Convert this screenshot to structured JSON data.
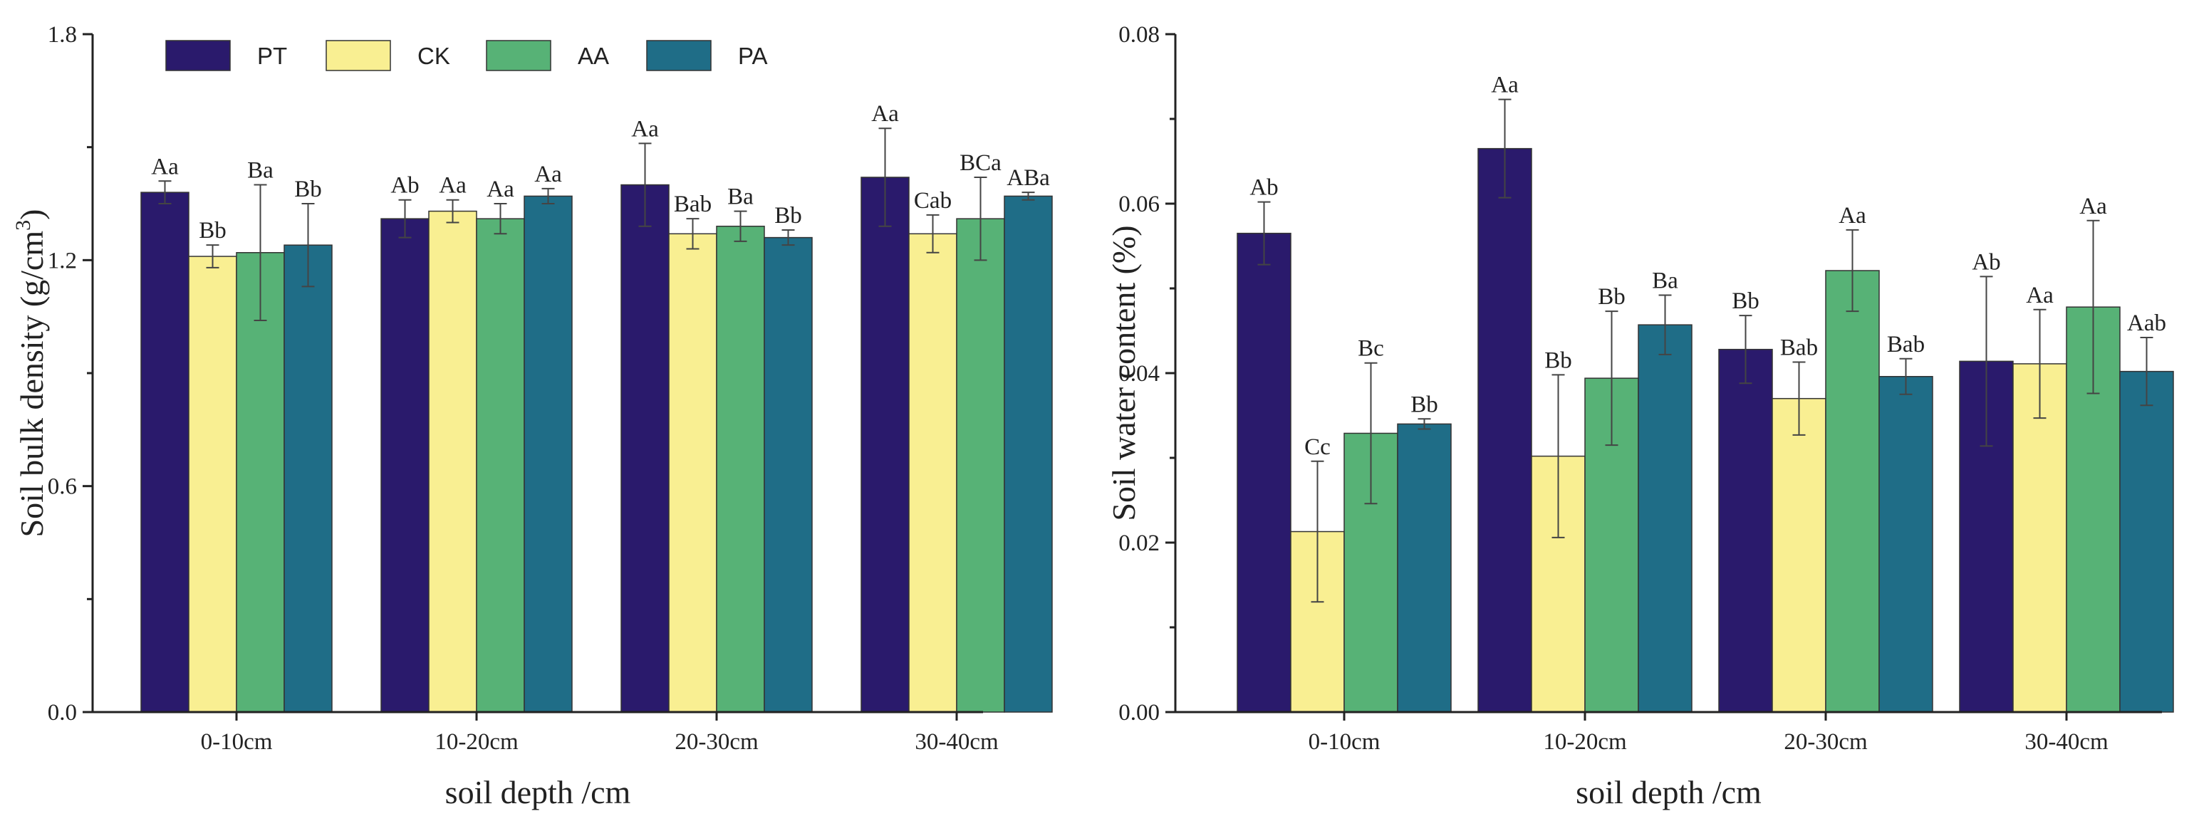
{
  "colors": {
    "PT": "#2a1a6c",
    "CK": "#f9ef92",
    "AA": "#57b276",
    "PA": "#1f6d87"
  },
  "legend": [
    "PT",
    "CK",
    "AA",
    "PA"
  ],
  "chart_data": [
    {
      "type": "bar",
      "title": "",
      "xlabel": "soil depth /cm",
      "ylabel_main": "Soil bulk density (g/cm",
      "ylabel_sup": "3",
      "ylabel_end": ")",
      "ylim": [
        0,
        1.8
      ],
      "yticks": [
        "0.0",
        "0.6",
        "1.2",
        "1.8"
      ],
      "ytick_values": [
        0,
        0.6,
        1.2,
        1.8
      ],
      "categories": [
        "0-10cm",
        "10-20cm",
        "20-30cm",
        "30-40cm"
      ],
      "series": [
        {
          "name": "PT",
          "values": [
            1.38,
            1.31,
            1.4,
            1.42
          ],
          "errors": [
            0.03,
            0.05,
            0.11,
            0.13
          ],
          "labels": [
            "Aa",
            "Ab",
            "Aa",
            "Aa"
          ]
        },
        {
          "name": "CK",
          "values": [
            1.21,
            1.33,
            1.27,
            1.27
          ],
          "errors": [
            0.03,
            0.03,
            0.04,
            0.05
          ],
          "labels": [
            "Bb",
            "Aa",
            "Bab",
            "Cab"
          ]
        },
        {
          "name": "AA",
          "values": [
            1.22,
            1.31,
            1.29,
            1.31
          ],
          "errors": [
            0.18,
            0.04,
            0.04,
            0.11
          ],
          "labels": [
            "Ba",
            "Aa",
            "Ba",
            "BCa"
          ]
        },
        {
          "name": "PA",
          "values": [
            1.24,
            1.37,
            1.26,
            1.37
          ],
          "errors": [
            0.11,
            0.02,
            0.02,
            0.01
          ],
          "labels": [
            "Bb",
            "Aa",
            "Bb",
            "ABa"
          ]
        }
      ]
    },
    {
      "type": "bar",
      "title": "",
      "xlabel": "soil depth /cm",
      "ylabel_main": "Soil water content (%)",
      "ylabel_sup": "",
      "ylabel_end": "",
      "ylim": [
        0,
        0.08
      ],
      "yticks": [
        "0.00",
        "0.02",
        "0.04",
        "0.06",
        "0.08"
      ],
      "ytick_values": [
        0,
        0.02,
        0.04,
        0.06,
        0.08
      ],
      "categories": [
        "0-10cm",
        "10-20cm",
        "20-30cm",
        "30-40cm"
      ],
      "series": [
        {
          "name": "PT",
          "values": [
            0.0565,
            0.0665,
            0.0428,
            0.0414
          ],
          "errors": [
            0.0037,
            0.0058,
            0.004,
            0.01
          ],
          "labels": [
            "Ab",
            "Aa",
            "Bb",
            "Ab"
          ]
        },
        {
          "name": "CK",
          "values": [
            0.0213,
            0.0302,
            0.037,
            0.0411
          ],
          "errors": [
            0.0083,
            0.0096,
            0.0043,
            0.0064
          ],
          "labels": [
            "Cc",
            "Bb",
            "Bab",
            "Aa"
          ]
        },
        {
          "name": "AA",
          "values": [
            0.0329,
            0.0394,
            0.0521,
            0.0478
          ],
          "errors": [
            0.0083,
            0.0079,
            0.0048,
            0.0102
          ],
          "labels": [
            "Bc",
            "Bb",
            "Aa",
            "Aa"
          ]
        },
        {
          "name": "PA",
          "values": [
            0.034,
            0.0457,
            0.0396,
            0.0402
          ],
          "errors": [
            0.0006,
            0.0035,
            0.0021,
            0.004
          ],
          "labels": [
            "Bb",
            "Ba",
            "Bab",
            "Aab"
          ]
        }
      ]
    }
  ]
}
